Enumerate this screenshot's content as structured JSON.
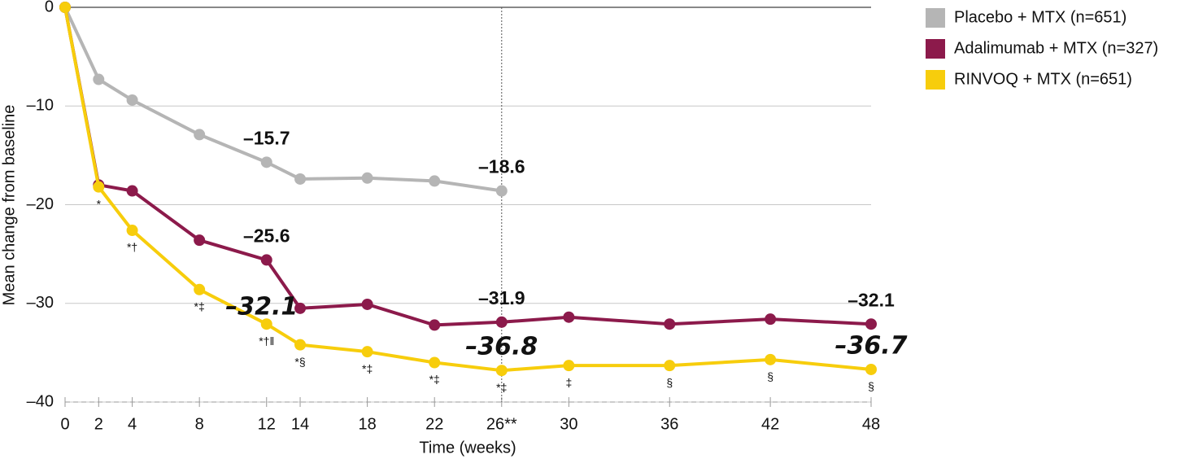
{
  "chart_data": {
    "type": "line",
    "y_label": "Mean change from baseline",
    "x_label": "Time (weeks)",
    "x": [
      0,
      2,
      4,
      8,
      12,
      14,
      18,
      22,
      26,
      30,
      36,
      42,
      48
    ],
    "xlim": [
      0,
      48
    ],
    "xticks": [
      0,
      2,
      4,
      8,
      12,
      14,
      18,
      22,
      {
        "value": 26,
        "label": "26**"
      },
      30,
      36,
      42,
      48
    ],
    "ylim": [
      -40,
      0
    ],
    "yticks": [
      0,
      {
        "value": -10,
        "label": "–10"
      },
      {
        "value": -20,
        "label": "–20"
      },
      {
        "value": -30,
        "label": "–30"
      },
      {
        "value": -40,
        "label": "–40"
      }
    ],
    "grid": true,
    "vline": 26,
    "legend": "right",
    "series": [
      {
        "name": "Placebo + MTX (n=651)",
        "color": "#b5b5b5",
        "values": [
          0,
          -7.3,
          -9.4,
          -12.9,
          -15.7,
          -17.4,
          -17.3,
          -17.6,
          -18.6,
          null,
          null,
          null,
          null
        ],
        "value_labels": [
          null,
          null,
          null,
          null,
          "–15.7",
          null,
          null,
          null,
          "–18.6",
          null,
          null,
          null,
          null
        ]
      },
      {
        "name": "Adalimumab + MTX (n=327)",
        "color": "#8c1a4b",
        "values": [
          0,
          -18.0,
          -18.6,
          -23.6,
          -25.6,
          -30.5,
          -30.1,
          -32.2,
          -31.9,
          -31.4,
          -32.1,
          -31.6,
          -32.1
        ],
        "value_labels": [
          null,
          null,
          null,
          null,
          "–25.6",
          null,
          null,
          null,
          "–31.9",
          null,
          null,
          null,
          "–32.1"
        ]
      },
      {
        "name": "RINVOQ + MTX (n=651)",
        "color": "#f7cd0c",
        "values": [
          0,
          -18.2,
          -22.6,
          -28.6,
          -32.1,
          -34.2,
          -34.9,
          -36.0,
          -36.8,
          -36.3,
          -36.3,
          -35.7,
          -36.7
        ],
        "value_labels": [
          null,
          null,
          null,
          null,
          "–32.1",
          null,
          null,
          null,
          "–36.8",
          null,
          null,
          null,
          "–36.7"
        ],
        "markers": [
          null,
          "*",
          "*†",
          "*‡",
          "*†ǁ",
          "*§",
          "*‡",
          "*‡",
          "*‡",
          "‡",
          "§",
          "§",
          "§"
        ]
      }
    ]
  }
}
